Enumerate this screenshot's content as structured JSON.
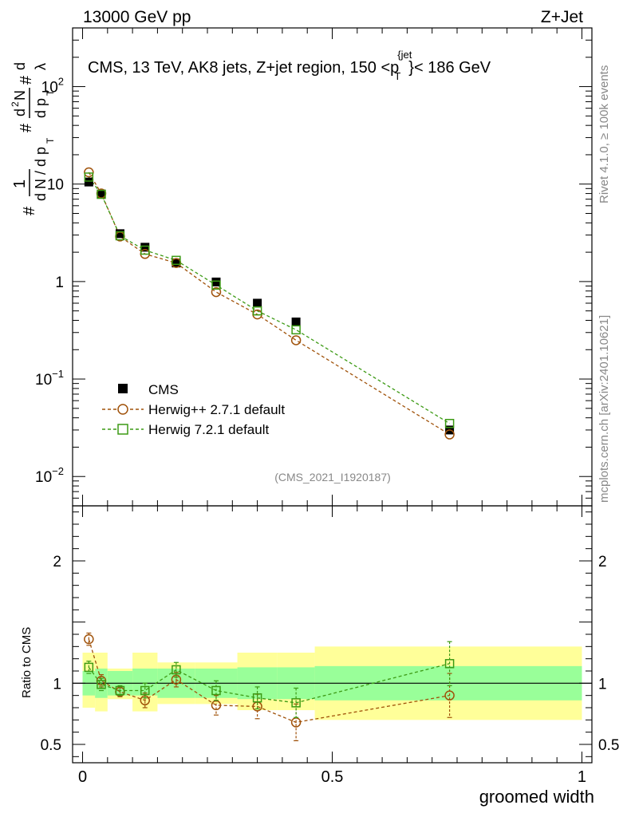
{
  "header": {
    "left": "13000 GeV pp",
    "right": "Z+Jet"
  },
  "side_labels": {
    "rivet": "Rivet 4.1.0, ≥ 100k events",
    "mcplots": "mcplots.cern.ch [arXiv:2401.10621]"
  },
  "chart_data": {
    "type": "scatter",
    "title": "CMS, 13 TeV, AK8 jets, Z+jet region, 150 <p_T^{jet}< 186 GeV",
    "title_parts": {
      "prefix": "CMS, 13 TeV, AK8 jets, Z+jet region, 150 <p",
      "sup": "{jet",
      "sub": "T",
      "suffix": "}< 186 GeV"
    },
    "analysis_id": "(CMS_2021_I1920187)",
    "xlabel": "groomed width",
    "ylabel_main": "1/N dN/dp_T dλ ...",
    "ylabel_ratio": "Ratio to CMS",
    "xlim": [
      -0.02,
      1.02
    ],
    "ylim_main": [
      0.005,
      400
    ],
    "ylim_ratio": [
      0.35,
      2.45
    ],
    "y_scale_main": "log",
    "x_ticks": [
      "0",
      "0.5",
      "1"
    ],
    "y_ticks_main": [
      "10⁻²",
      "10⁻¹",
      "1",
      "10",
      "10²"
    ],
    "y_ticks_ratio": [
      "0.5",
      "1",
      "2"
    ],
    "legend": [
      "CMS",
      "Herwig++ 2.7.1 default",
      "Herwig 7.2.1 default"
    ],
    "legend_position": "bottom-left",
    "x": [
      0.0125,
      0.0375,
      0.075,
      0.125,
      0.1875,
      0.2675,
      0.35,
      0.4275,
      0.735
    ],
    "bins": [
      [
        0.0,
        0.025
      ],
      [
        0.025,
        0.05
      ],
      [
        0.05,
        0.1
      ],
      [
        0.1,
        0.15
      ],
      [
        0.15,
        0.225
      ],
      [
        0.225,
        0.31
      ],
      [
        0.31,
        0.39
      ],
      [
        0.39,
        0.465
      ],
      [
        0.465,
        1.0
      ]
    ],
    "series": [
      {
        "name": "CMS",
        "color": "#000000",
        "values": [
          10.5,
          7.9,
          3.1,
          2.25,
          1.55,
          0.99,
          0.6,
          0.385,
          0.03
        ],
        "band_green": [
          [
            0.9,
            1.1
          ],
          [
            0.88,
            1.12
          ],
          [
            0.9,
            1.1
          ],
          [
            0.9,
            1.12
          ],
          [
            0.88,
            1.12
          ],
          [
            0.88,
            1.12
          ],
          [
            0.87,
            1.13
          ],
          [
            0.87,
            1.13
          ],
          [
            0.86,
            1.14
          ]
        ],
        "band_yellow": [
          [
            0.8,
            1.25
          ],
          [
            0.77,
            1.25
          ],
          [
            0.87,
            1.12
          ],
          [
            0.77,
            1.25
          ],
          [
            0.83,
            1.17
          ],
          [
            0.83,
            1.17
          ],
          [
            0.78,
            1.25
          ],
          [
            0.78,
            1.25
          ],
          [
            0.7,
            1.3
          ]
        ]
      },
      {
        "name": "Herwig++ 2.7.1 default",
        "color": "#a0520a",
        "values": [
          13.2,
          8.0,
          2.9,
          1.92,
          1.55,
          0.78,
          0.46,
          0.25,
          0.027
        ],
        "ratio": [
          1.36,
          1.02,
          0.93,
          0.86,
          1.03,
          0.82,
          0.81,
          0.68,
          0.9
        ],
        "ratio_err": [
          0.05,
          0.05,
          0.04,
          0.06,
          0.06,
          0.08,
          0.1,
          0.15,
          0.18
        ]
      },
      {
        "name": "Herwig 7.2.1 default",
        "color": "#3c9a14",
        "values": [
          11.8,
          7.85,
          2.95,
          2.1,
          1.65,
          0.92,
          0.5,
          0.32,
          0.035
        ],
        "ratio": [
          1.13,
          0.99,
          0.94,
          0.94,
          1.11,
          0.94,
          0.88,
          0.84,
          1.16
        ],
        "ratio_err": [
          0.05,
          0.05,
          0.04,
          0.06,
          0.06,
          0.08,
          0.09,
          0.12,
          0.18
        ]
      }
    ]
  }
}
